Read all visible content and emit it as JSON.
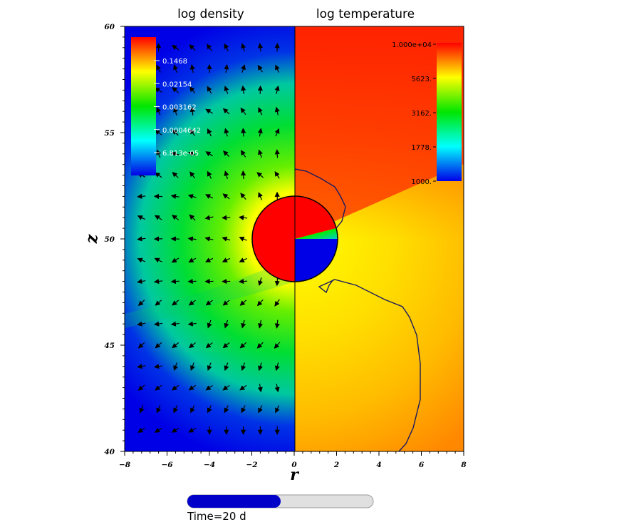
{
  "chart_data": {
    "type": "heatmap",
    "panels": [
      {
        "title": "log density",
        "side": "left"
      },
      {
        "title": "log temperature",
        "side": "right"
      }
    ],
    "xlabel": "r",
    "ylabel": "z",
    "xlim": [
      -8,
      8
    ],
    "ylim": [
      40,
      60
    ],
    "x_ticks": [
      -8,
      -6,
      -4,
      -2,
      0,
      2,
      4,
      6,
      8
    ],
    "y_ticks": [
      40,
      45,
      50,
      55,
      60
    ],
    "density_colorbar": {
      "labels": [
        "0.1468",
        "0.02154",
        "0.003162",
        "0.0004642",
        "6.813e-05"
      ],
      "position": "top-left"
    },
    "temperature_colorbar": {
      "labels": [
        "1.000e+04",
        "5623.",
        "3162.",
        "1778.",
        "1000."
      ],
      "position": "top-right"
    },
    "circle": {
      "center_r": 0,
      "center_z": 50,
      "radius": 2
    },
    "colormap": [
      "#0000e6",
      "#00ffff",
      "#00e600",
      "#ffff00",
      "#ff0000"
    ],
    "time_progress": 0.5
  },
  "time_label": "Time=20 d"
}
